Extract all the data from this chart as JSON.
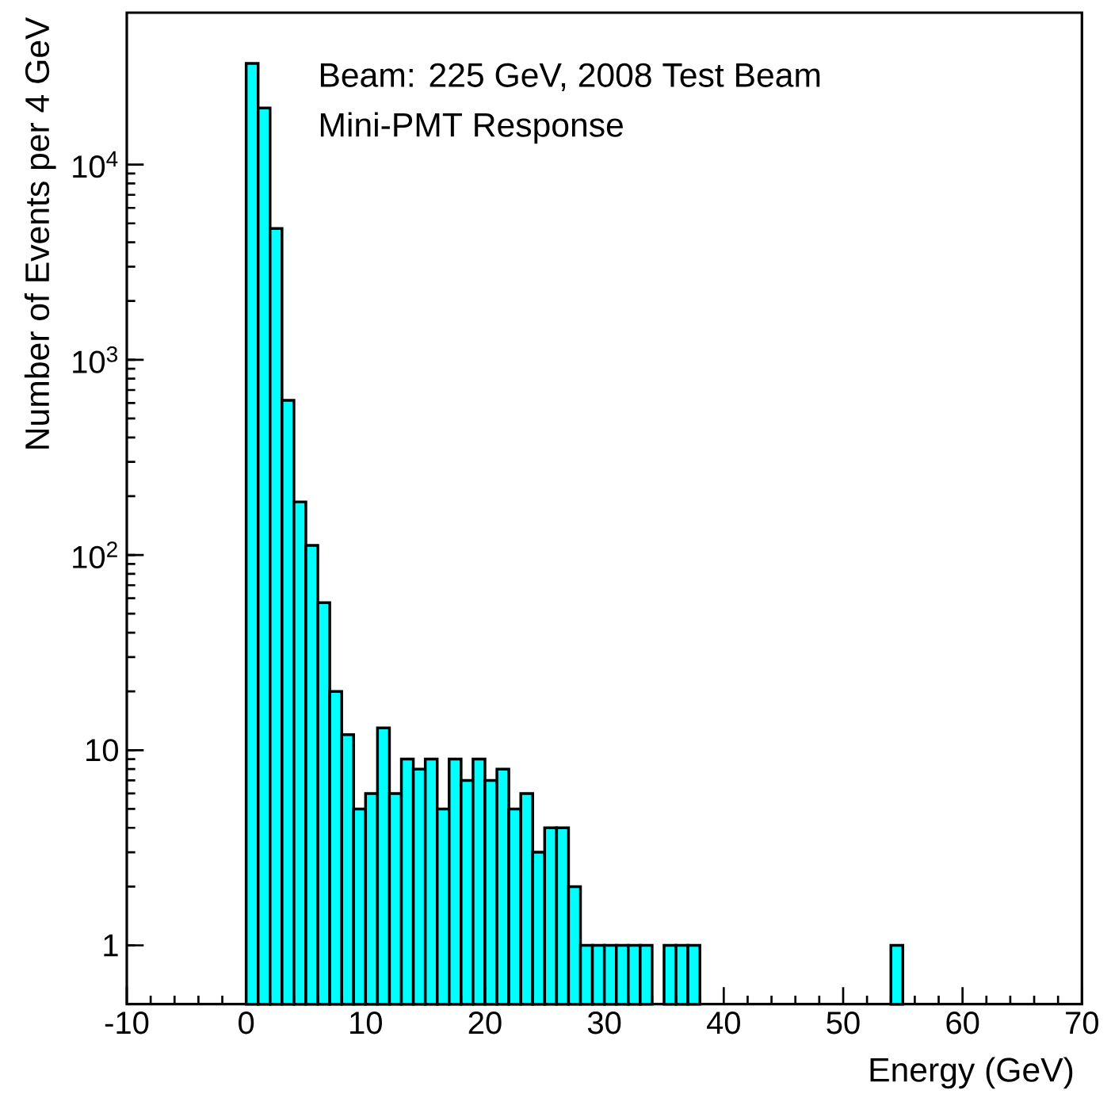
{
  "chart_data": {
    "type": "histogram",
    "xlabel": "Energy (GeV)",
    "ylabel": "Number of Events per 4 GeV",
    "annotations": [
      "Beam: 225 GeV, 2008 Test Beam",
      "Mini-PMT Response"
    ],
    "bins": [
      0,
      1,
      2,
      3,
      4,
      5,
      6,
      7,
      8,
      9,
      10,
      11,
      12,
      13,
      14,
      15,
      16,
      17,
      18,
      19,
      20,
      21,
      22,
      23,
      24,
      25,
      26,
      27,
      28,
      29,
      30,
      31,
      32,
      33,
      34,
      35,
      36,
      37,
      38,
      39,
      40,
      41,
      42,
      43,
      44,
      45,
      46,
      47,
      48,
      49,
      50,
      51,
      52,
      53,
      54,
      55
    ],
    "values": [
      33000,
      19500,
      4700,
      620,
      187,
      112,
      57,
      20,
      12,
      5,
      6,
      13,
      6,
      9,
      8,
      9,
      5,
      9,
      7,
      9,
      7,
      8,
      5,
      6,
      3,
      4,
      4,
      2,
      1,
      1,
      1,
      1,
      1,
      1,
      null,
      1,
      1,
      1,
      null,
      null,
      null,
      null,
      null,
      null,
      null,
      null,
      null,
      null,
      null,
      null,
      null,
      null,
      null,
      null,
      1
    ],
    "color": "#00ffff",
    "log": "y",
    "xlim": [
      -10,
      70
    ],
    "xticks": [
      -10,
      0,
      10,
      20,
      30,
      40,
      50,
      60,
      70
    ],
    "ylim": [
      0.5,
      60000
    ],
    "yticks": [
      1,
      10,
      {
        "value": 100,
        "label": "10$^{2}$"
      },
      {
        "value": 1000,
        "label": "10$^{3}$"
      },
      {
        "value": 10000,
        "label": "10$^{4}$"
      }
    ]
  }
}
